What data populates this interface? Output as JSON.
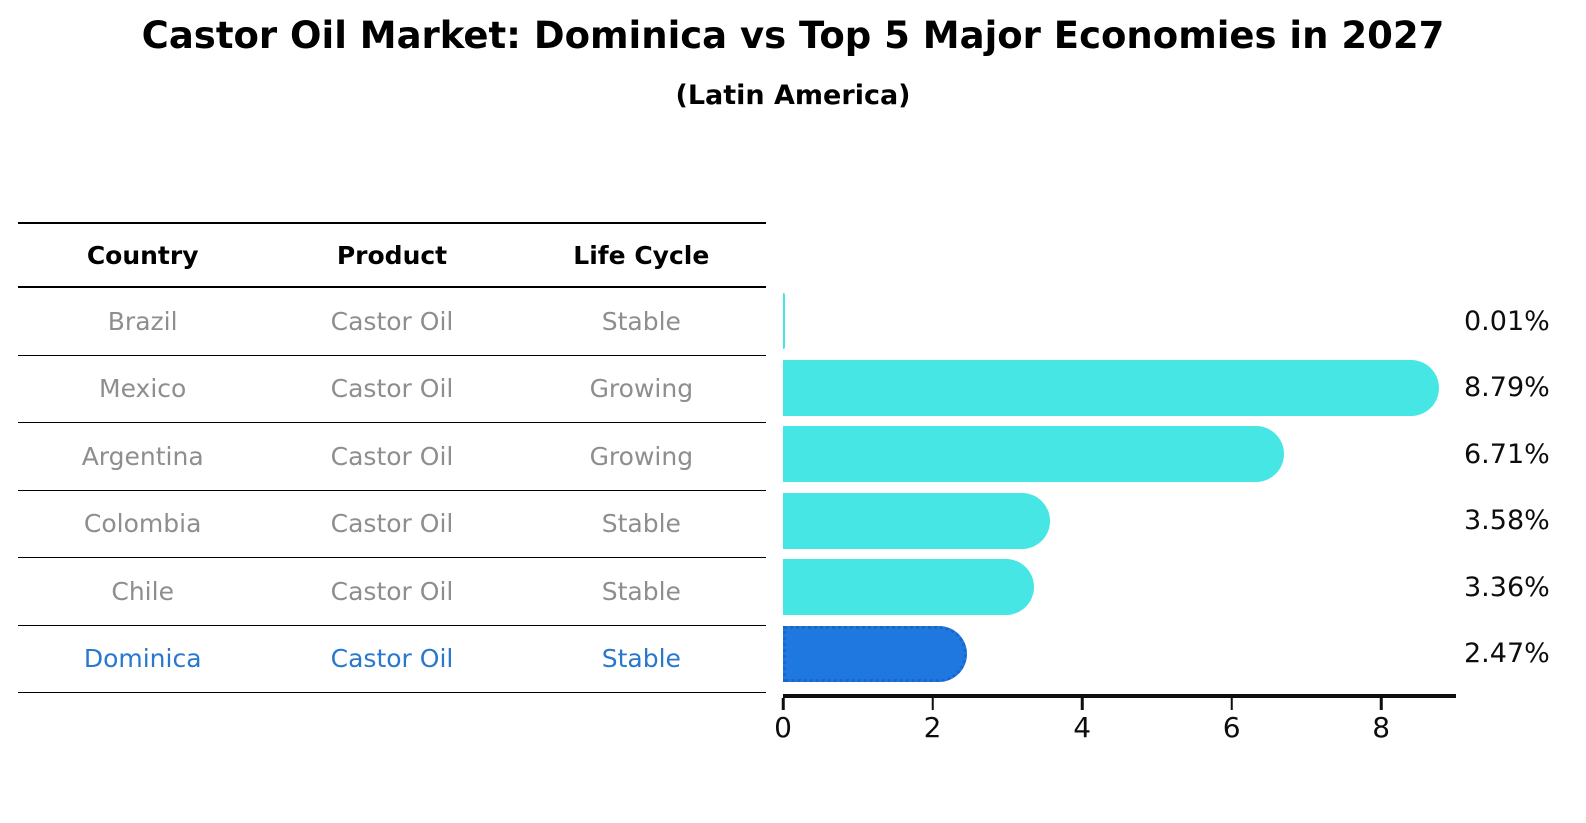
{
  "header": {
    "title": "Castor Oil Market: Dominica vs Top 5 Major Economies in 2027",
    "subtitle": "(Latin America)"
  },
  "table": {
    "headers": [
      "Country",
      "Product",
      "Life Cycle"
    ],
    "rows": [
      {
        "country": "Brazil",
        "product": "Castor Oil",
        "life_cycle": "Stable",
        "highlight": false
      },
      {
        "country": "Mexico",
        "product": "Castor Oil",
        "life_cycle": "Growing",
        "highlight": false
      },
      {
        "country": "Argentina",
        "product": "Castor Oil",
        "life_cycle": "Growing",
        "highlight": false
      },
      {
        "country": "Colombia",
        "product": "Castor Oil",
        "life_cycle": "Stable",
        "highlight": false
      },
      {
        "country": "Chile",
        "product": "Castor Oil",
        "life_cycle": "Stable",
        "highlight": false
      },
      {
        "country": "Dominica",
        "product": "Castor Oil",
        "life_cycle": "Stable",
        "highlight": true
      }
    ]
  },
  "chart_data": {
    "type": "bar",
    "orientation": "horizontal",
    "title": "Castor Oil Market: Dominica vs Top 5 Major Economies in 2027",
    "subtitle": "(Latin America)",
    "categories": [
      "Brazil",
      "Mexico",
      "Argentina",
      "Colombia",
      "Chile",
      "Dominica"
    ],
    "values": [
      0.01,
      8.79,
      6.71,
      3.58,
      3.36,
      2.47
    ],
    "value_labels": [
      "0.01%",
      "8.79%",
      "6.71%",
      "3.58%",
      "3.36%",
      "2.47%"
    ],
    "xticks": [
      0,
      2,
      4,
      6,
      8
    ],
    "xlim": [
      0,
      9.0
    ],
    "highlight_category": "Dominica",
    "grid": false,
    "legend": false
  },
  "colors": {
    "bar": "#45e6e3",
    "highlight_bar": "#1f78e0",
    "highlight_bar_border": "#1b66cc",
    "highlight_text": "#2878ce",
    "row_text": "#8e8e8e",
    "axis": "#0d0d0d"
  }
}
